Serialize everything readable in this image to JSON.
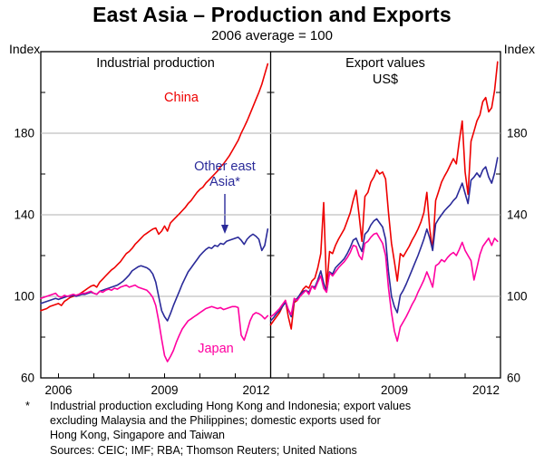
{
  "header": {
    "title": "East Asia – Production and Exports",
    "subtitle": "2006 average = 100"
  },
  "axes": {
    "index_label": "Index",
    "ylim": [
      60,
      220
    ],
    "yticks_labeled": [
      60,
      100,
      140,
      180
    ],
    "yticks_minor": [
      80,
      120,
      160,
      200
    ],
    "gridlines": [
      100,
      140,
      180
    ]
  },
  "chart_data": [
    {
      "type": "line",
      "title": "Industrial production",
      "x_start": 2005.5,
      "x_frequency": "monthly",
      "xlim": [
        2005.5,
        2012
      ],
      "xticks_labeled": [
        2006,
        2009,
        2012
      ],
      "xticks_minor": [
        2006,
        2007,
        2008,
        2009,
        2010,
        2011,
        2012
      ],
      "series": [
        {
          "name": "China",
          "color": "#ee0000",
          "values": [
            93,
            93.5,
            94,
            95,
            95.5,
            96,
            96.5,
            95.5,
            97.5,
            98.5,
            99.5,
            100,
            100.5,
            101,
            102,
            103,
            104,
            105,
            105.5,
            104.5,
            107,
            108.5,
            110,
            111.5,
            113,
            114,
            115.5,
            117,
            119,
            121,
            122,
            123.5,
            125.5,
            127,
            128.5,
            130,
            131,
            132,
            133,
            133.5,
            130.5,
            132,
            134.5,
            132,
            136,
            137.5,
            139,
            140.5,
            142,
            143.5,
            145.5,
            147,
            149,
            151,
            152.5,
            153.5,
            155.5,
            157,
            158.5,
            160,
            161.5,
            163.5,
            165,
            167,
            169,
            171.5,
            174,
            176.5,
            180,
            183,
            186,
            189.5,
            193,
            196.5,
            200,
            204,
            209,
            214
          ]
        },
        {
          "name": "Other east Asia*",
          "color": "#2a2a99",
          "values": [
            96.5,
            97,
            97.5,
            98,
            98.5,
            99,
            98.5,
            99,
            99.5,
            100,
            100,
            100.5,
            100,
            100.5,
            101,
            101,
            101.5,
            102,
            101.5,
            101,
            102.5,
            103,
            103.5,
            104,
            104.5,
            105,
            105.5,
            106.5,
            107.5,
            109,
            110.5,
            112.5,
            113.5,
            114.5,
            115,
            114.5,
            114,
            113,
            111,
            107,
            100,
            93,
            90,
            88,
            91.5,
            95.5,
            99,
            102.5,
            106,
            109,
            112,
            114,
            116,
            118,
            120,
            121.5,
            123,
            124,
            123.5,
            125,
            124.5,
            126,
            125.5,
            127,
            127.5,
            128,
            128.5,
            129,
            127.5,
            125.5,
            128,
            129.5,
            130.5,
            129.5,
            128,
            122.5,
            125,
            133
          ]
        },
        {
          "name": "Japan",
          "color": "#ff00a0",
          "values": [
            99,
            99.5,
            100,
            100.5,
            101,
            101.5,
            100,
            99.5,
            100.5,
            100,
            100.5,
            101,
            100.5,
            101,
            101.5,
            101.5,
            102,
            102.5,
            101.5,
            101,
            102.5,
            102,
            103,
            103.5,
            103,
            104,
            103.5,
            104.5,
            105,
            105.5,
            104.5,
            105,
            105.5,
            104.5,
            104,
            103.5,
            103,
            101.5,
            99.5,
            95.5,
            88,
            79,
            71,
            68,
            70.5,
            73.5,
            77.5,
            81,
            84,
            86,
            88,
            89,
            90,
            91,
            92,
            93,
            94,
            94.5,
            95,
            94.5,
            94,
            94.5,
            93.5,
            94,
            94.5,
            95,
            95,
            94.5,
            81,
            78.5,
            83,
            88,
            91,
            92,
            91.5,
            90.5,
            89,
            90.5
          ]
        }
      ]
    },
    {
      "type": "line",
      "title": "Export values",
      "subtitle": "US$",
      "x_start": 2005.5,
      "x_frequency": "monthly",
      "xlim": [
        2005.5,
        2012
      ],
      "xticks_labeled": [
        2009,
        2012
      ],
      "xticks_minor": [
        2006,
        2007,
        2008,
        2009,
        2010,
        2011,
        2012
      ],
      "series": [
        {
          "name": "China",
          "color": "#ee0000",
          "values": [
            86,
            88,
            90,
            92,
            95,
            98,
            90,
            84,
            97,
            98,
            101,
            103.5,
            105,
            104,
            107.5,
            109,
            114,
            121,
            146,
            104,
            122,
            121,
            125,
            128,
            130.5,
            133,
            137,
            141,
            147,
            152,
            140,
            127,
            149,
            151,
            156,
            158.5,
            162,
            160,
            161,
            157.5,
            141,
            126,
            117,
            107.5,
            121,
            119.5,
            122,
            124.5,
            127.5,
            130,
            133,
            136.5,
            141,
            151,
            133,
            123,
            147,
            151.5,
            156,
            159,
            161.5,
            164.5,
            167.5,
            165,
            176,
            186,
            161,
            150,
            176,
            181,
            186,
            189,
            195.5,
            197.5,
            190.5,
            192.5,
            201,
            215
          ]
        },
        {
          "name": "Other east Asia*",
          "color": "#2a2a99",
          "values": [
            88,
            89.5,
            91.5,
            93,
            95,
            97,
            93.5,
            90,
            98,
            99,
            101,
            102.5,
            103,
            102,
            105,
            104.5,
            108,
            112.5,
            106.5,
            102.5,
            112,
            111,
            114,
            115.5,
            117,
            118.5,
            121,
            124,
            127.5,
            128.5,
            125,
            122,
            130.5,
            132,
            135,
            137,
            138,
            136,
            134,
            128,
            112,
            100,
            95,
            92,
            100.5,
            103,
            106,
            109.5,
            113,
            116.5,
            120,
            124,
            128,
            133,
            128.5,
            122.5,
            135.5,
            138,
            140,
            142,
            143.5,
            145,
            147,
            148.5,
            152,
            155.5,
            150.5,
            145.5,
            157,
            158.5,
            160.5,
            158.5,
            162,
            163.5,
            158.5,
            155.5,
            160.5,
            168
          ]
        },
        {
          "name": "Japan",
          "color": "#ff00a0",
          "values": [
            90,
            91,
            92.5,
            94,
            96,
            98,
            93.5,
            91,
            99,
            98,
            100,
            101.5,
            103,
            101,
            105,
            103.5,
            107,
            110,
            104,
            102,
            111.5,
            110,
            112,
            114,
            115.5,
            117,
            119,
            121.5,
            125,
            124.5,
            120,
            118,
            126,
            127,
            129,
            130.5,
            131,
            128.5,
            126,
            120,
            104,
            92,
            83,
            78,
            85,
            87.5,
            90,
            93,
            96,
            98.5,
            102,
            105,
            108,
            112,
            108.5,
            104.5,
            115,
            116,
            118,
            117,
            119,
            120.5,
            121.5,
            120,
            123,
            126.5,
            122.5,
            120,
            117.5,
            108,
            114,
            120.5,
            124.5,
            126.5,
            128.5,
            125,
            128.5,
            127
          ]
        }
      ]
    }
  ],
  "footnote": {
    "marker": "*",
    "lines": [
      "Industrial production excluding Hong Kong and Indonesia; export values",
      "excluding Malaysia and the Philippines; domestic exports used for",
      "Hong Kong, Singapore and Taiwan"
    ],
    "sources": "Sources: CEIC; IMF; RBA; Thomson Reuters; United Nations"
  }
}
